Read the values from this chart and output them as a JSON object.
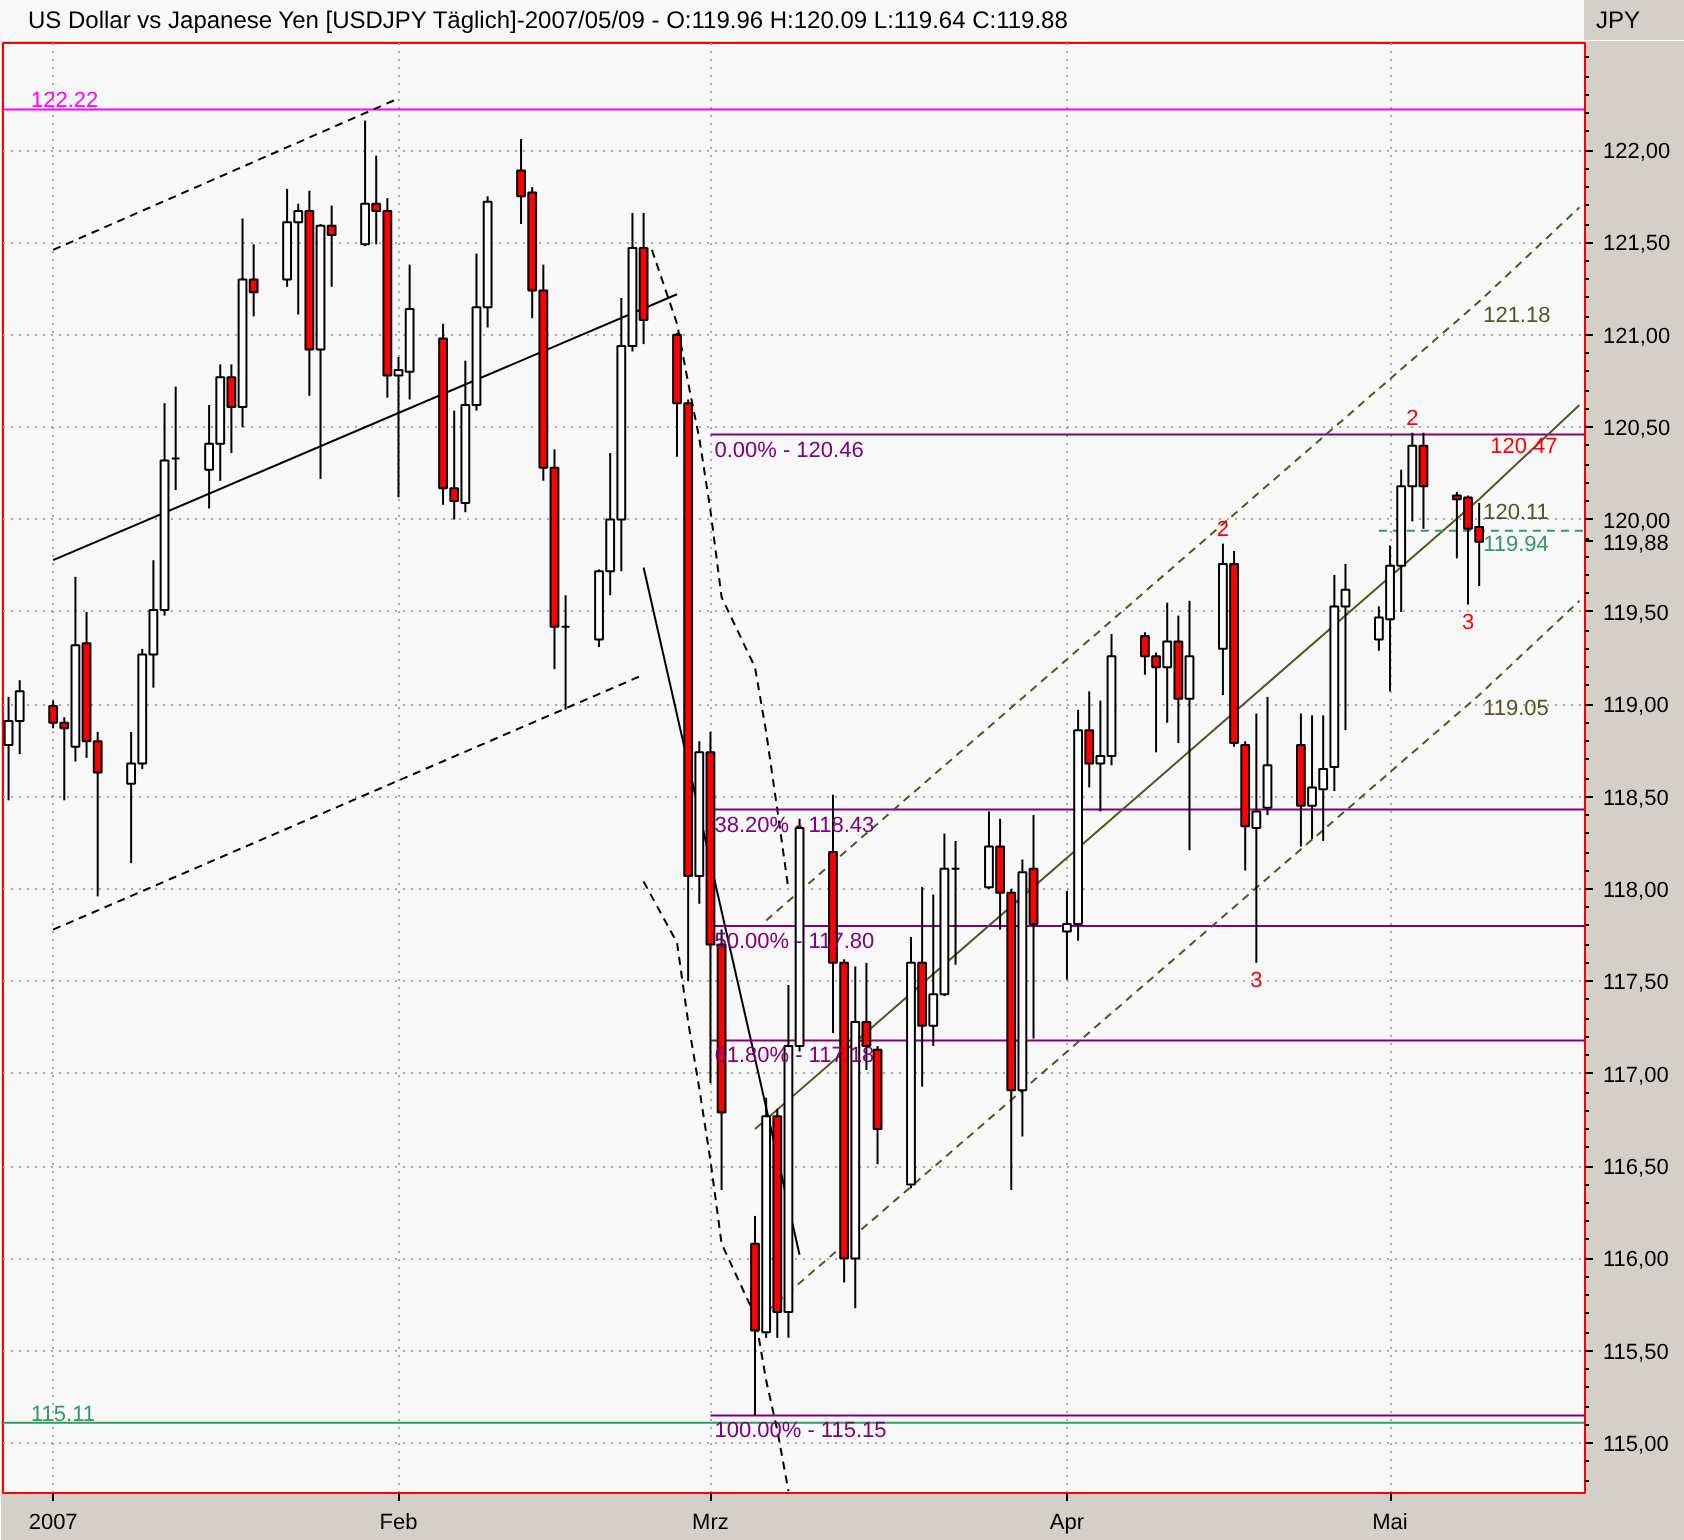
{
  "chart_data": {
    "type": "candlestick",
    "title": "US Dollar vs Japanese Yen [USDJPY Täglich]-2007/05/09 - O:119.96 H:120.09 L:119.64 C:119.88",
    "ylabel": "JPY",
    "x": [
      "2006-12-28",
      "2006-12-29",
      "2007-01-01",
      "2007-01-02",
      "2007-01-03",
      "2007-01-04",
      "2007-01-05",
      "2007-01-08",
      "2007-01-09",
      "2007-01-10",
      "2007-01-11",
      "2007-01-12",
      "2007-01-15",
      "2007-01-16",
      "2007-01-17",
      "2007-01-18",
      "2007-01-19",
      "2007-01-22",
      "2007-01-23",
      "2007-01-24",
      "2007-01-25",
      "2007-01-26",
      "2007-01-29",
      "2007-01-30",
      "2007-01-31",
      "2007-02-01",
      "2007-02-02",
      "2007-02-05",
      "2007-02-06",
      "2007-02-07",
      "2007-02-08",
      "2007-02-09",
      "2007-02-12",
      "2007-02-13",
      "2007-02-14",
      "2007-02-15",
      "2007-02-16",
      "2007-02-19",
      "2007-02-20",
      "2007-02-21",
      "2007-02-22",
      "2007-02-23",
      "2007-02-26",
      "2007-02-27",
      "2007-02-28",
      "2007-03-01",
      "2007-03-02",
      "2007-03-05",
      "2007-03-06",
      "2007-03-07",
      "2007-03-08",
      "2007-03-09",
      "2007-03-12",
      "2007-03-13",
      "2007-03-14",
      "2007-03-15",
      "2007-03-16",
      "2007-03-19",
      "2007-03-20",
      "2007-03-21",
      "2007-03-22",
      "2007-03-23",
      "2007-03-26",
      "2007-03-27",
      "2007-03-28",
      "2007-03-29",
      "2007-03-30",
      "2007-04-02",
      "2007-04-03",
      "2007-04-04",
      "2007-04-05",
      "2007-04-06",
      "2007-04-09",
      "2007-04-10",
      "2007-04-11",
      "2007-04-12",
      "2007-04-13",
      "2007-04-16",
      "2007-04-17",
      "2007-04-18",
      "2007-04-19",
      "2007-04-20",
      "2007-04-23",
      "2007-04-24",
      "2007-04-25",
      "2007-04-26",
      "2007-04-27",
      "2007-04-30",
      "2007-05-01",
      "2007-05-02",
      "2007-05-03",
      "2007-05-04",
      "2007-05-07",
      "2007-05-08",
      "2007-05-09"
    ],
    "ohlc": [
      [
        118.78,
        119.04,
        118.48,
        118.91
      ],
      [
        118.91,
        119.13,
        118.73,
        119.07
      ],
      [
        118.99,
        119.02,
        118.87,
        118.9
      ],
      [
        118.9,
        118.93,
        118.48,
        118.87
      ],
      [
        118.77,
        119.69,
        118.69,
        119.32
      ],
      [
        119.33,
        119.5,
        118.71,
        118.8
      ],
      [
        118.8,
        118.85,
        117.96,
        118.63
      ],
      [
        118.57,
        118.85,
        118.14,
        118.68
      ],
      [
        118.68,
        119.3,
        118.65,
        119.27
      ],
      [
        119.27,
        119.78,
        119.09,
        119.51
      ],
      [
        119.51,
        120.63,
        119.48,
        120.32
      ],
      [
        120.33,
        120.72,
        120.16,
        120.33
      ],
      [
        120.27,
        120.62,
        120.06,
        120.41
      ],
      [
        120.41,
        120.84,
        120.21,
        120.77
      ],
      [
        120.77,
        120.84,
        120.36,
        120.61
      ],
      [
        120.61,
        121.63,
        120.5,
        121.3
      ],
      [
        121.3,
        121.49,
        121.1,
        121.23
      ],
      [
        121.3,
        121.79,
        121.26,
        121.61
      ],
      [
        121.61,
        121.71,
        121.11,
        121.67
      ],
      [
        121.67,
        121.78,
        120.67,
        120.92
      ],
      [
        120.92,
        121.6,
        120.22,
        121.59
      ],
      [
        121.59,
        121.7,
        121.26,
        121.54
      ],
      [
        121.49,
        122.16,
        121.48,
        121.71
      ],
      [
        121.71,
        121.97,
        121.49,
        121.67
      ],
      [
        121.67,
        121.74,
        120.66,
        120.78
      ],
      [
        120.78,
        120.88,
        120.12,
        120.81
      ],
      [
        120.8,
        121.38,
        120.65,
        121.14
      ],
      [
        120.98,
        121.06,
        120.08,
        120.17
      ],
      [
        120.17,
        120.59,
        120.0,
        120.1
      ],
      [
        120.09,
        120.86,
        120.04,
        120.62
      ],
      [
        120.62,
        121.44,
        120.59,
        121.15
      ],
      [
        121.15,
        121.75,
        121.04,
        121.72
      ],
      [
        121.89,
        122.06,
        121.6,
        121.75
      ],
      [
        121.77,
        121.8,
        121.09,
        121.24
      ],
      [
        121.24,
        121.38,
        120.21,
        120.28
      ],
      [
        120.28,
        120.38,
        119.19,
        119.42
      ],
      [
        119.42,
        119.59,
        118.97,
        119.42
      ],
      [
        119.35,
        119.73,
        119.31,
        119.72
      ],
      [
        119.72,
        120.36,
        119.59,
        120.0
      ],
      [
        120.0,
        121.2,
        119.72,
        120.94
      ],
      [
        120.94,
        121.66,
        120.91,
        121.47
      ],
      [
        121.47,
        121.66,
        120.95,
        121.08
      ],
      [
        121.0,
        121.01,
        120.34,
        120.63
      ],
      [
        120.63,
        120.65,
        117.5,
        118.07
      ],
      [
        118.07,
        118.8,
        117.92,
        118.74
      ],
      [
        118.74,
        118.85,
        116.95,
        117.7
      ],
      [
        117.7,
        117.78,
        116.37,
        116.79
      ],
      [
        116.08,
        116.23,
        115.15,
        115.61
      ],
      [
        115.6,
        116.87,
        115.57,
        116.77
      ],
      [
        116.77,
        116.81,
        115.57,
        115.71
      ],
      [
        115.71,
        117.48,
        115.57,
        117.15
      ],
      [
        117.15,
        118.38,
        117.12,
        118.33
      ],
      [
        118.2,
        118.51,
        117.22,
        117.6
      ],
      [
        117.6,
        117.62,
        115.87,
        116.0
      ],
      [
        116.0,
        117.58,
        115.73,
        117.28
      ],
      [
        117.28,
        117.6,
        117.02,
        117.15
      ],
      [
        117.13,
        117.15,
        116.51,
        116.7
      ],
      [
        116.4,
        117.74,
        116.38,
        117.6
      ],
      [
        117.6,
        118.01,
        116.93,
        117.26
      ],
      [
        117.26,
        117.97,
        117.15,
        117.43
      ],
      [
        117.43,
        118.3,
        117.42,
        118.11
      ],
      [
        118.11,
        118.26,
        117.59,
        118.11
      ],
      [
        118.01,
        118.42,
        118.0,
        118.23
      ],
      [
        118.23,
        118.38,
        117.78,
        117.98
      ],
      [
        117.98,
        118.0,
        116.37,
        116.91
      ],
      [
        116.91,
        118.16,
        116.66,
        118.09
      ],
      [
        118.11,
        118.4,
        117.19,
        117.81
      ],
      [
        117.77,
        117.99,
        117.51,
        117.81
      ],
      [
        117.81,
        118.97,
        117.72,
        118.86
      ],
      [
        118.86,
        119.07,
        118.55,
        118.68
      ],
      [
        118.68,
        119.02,
        118.42,
        118.72
      ],
      [
        118.72,
        119.38,
        118.67,
        119.26
      ],
      [
        119.37,
        119.39,
        119.16,
        119.26
      ],
      [
        119.26,
        119.28,
        118.74,
        119.2
      ],
      [
        119.2,
        119.55,
        118.9,
        119.34
      ],
      [
        119.34,
        119.48,
        118.79,
        119.03
      ],
      [
        119.03,
        119.56,
        118.21,
        119.26
      ],
      [
        119.3,
        119.87,
        119.05,
        119.76
      ],
      [
        119.76,
        119.83,
        118.77,
        118.79
      ],
      [
        118.78,
        118.8,
        118.1,
        118.34
      ],
      [
        118.33,
        118.95,
        117.6,
        118.42
      ],
      [
        118.44,
        119.04,
        118.4,
        118.67
      ],
      [
        118.78,
        118.95,
        118.23,
        118.45
      ],
      [
        118.45,
        118.94,
        118.27,
        118.55
      ],
      [
        118.54,
        118.94,
        118.26,
        118.65
      ],
      [
        118.66,
        119.7,
        118.53,
        119.53
      ],
      [
        119.53,
        119.76,
        118.86,
        119.62
      ],
      [
        119.35,
        119.53,
        119.29,
        119.47
      ],
      [
        119.46,
        119.86,
        119.07,
        119.75
      ],
      [
        119.75,
        120.27,
        119.5,
        120.18
      ],
      [
        120.18,
        120.47,
        119.99,
        120.4
      ],
      [
        120.4,
        120.47,
        119.95,
        120.18
      ],
      [
        120.13,
        120.15,
        119.79,
        120.11
      ],
      [
        120.12,
        120.13,
        119.54,
        119.95
      ],
      [
        119.96,
        120.09,
        119.64,
        119.88
      ]
    ],
    "colors": [
      "#ffffff",
      "#ffffff",
      "#ff0000",
      "#ff0000",
      "#ffffff",
      "#ff0000",
      "#ff0000",
      "#ffffff",
      "#ffffff",
      "#ffffff",
      "#ffffff",
      "#000000",
      "#ffffff",
      "#ffffff",
      "#ff0000",
      "#ffffff",
      "#ff0000",
      "#ffffff",
      "#ffffff",
      "#ff0000",
      "#ffffff",
      "#ff0000",
      "#ffffff",
      "#ff0000",
      "#ff0000",
      "#ffffff",
      "#ffffff",
      "#ff0000",
      "#ff0000",
      "#ffffff",
      "#ffffff",
      "#ffffff",
      "#ff0000",
      "#ff0000",
      "#ff0000",
      "#ff0000",
      "#000000",
      "#ffffff",
      "#ffffff",
      "#ffffff",
      "#ffffff",
      "#ff0000",
      "#ff0000",
      "#ff0000",
      "#ffffff",
      "#ff0000",
      "#ff0000",
      "#ff0000",
      "#ffffff",
      "#ff0000",
      "#ffffff",
      "#ffffff",
      "#ff0000",
      "#ff0000",
      "#ffffff",
      "#ff0000",
      "#ff0000",
      "#ffffff",
      "#ff0000",
      "#ffffff",
      "#ffffff",
      "#000000",
      "#ffffff",
      "#ff0000",
      "#ff0000",
      "#ffffff",
      "#ff0000",
      "#ffffff",
      "#ffffff",
      "#ff0000",
      "#ffffff",
      "#ffffff",
      "#ff0000",
      "#ff0000",
      "#ffffff",
      "#ff0000",
      "#ffffff",
      "#ffffff",
      "#ff0000",
      "#ff0000",
      "#ffffff",
      "#ffffff",
      "#ff0000",
      "#ffffff",
      "#ffffff",
      "#ffffff",
      "#ffffff",
      "#ffffff",
      "#ffffff",
      "#ffffff",
      "#ffffff",
      "#ff0000",
      "#ff0000",
      "#ff0000",
      "#ff0000"
    ],
    "xlim": [
      "2006-12-27T12:00",
      "2007-05-18T12:00"
    ],
    "xticks": [
      {
        "value": "2007-01-01",
        "label": "2007"
      },
      {
        "value": "2007-02-01",
        "label": "Feb"
      },
      {
        "value": "2007-03-01",
        "label": "Mrz"
      },
      {
        "value": "2007-04-02",
        "label": "Apr"
      },
      {
        "value": "2007-05-01",
        "label": "Mai"
      }
    ],
    "ylim": [
      114.73,
      122.58
    ],
    "yticks": [
      {
        "value": 115,
        "label": "115,00"
      },
      {
        "value": 115.5,
        "label": "115,50"
      },
      {
        "value": 116,
        "label": "116,00"
      },
      {
        "value": 116.5,
        "label": "116,50"
      },
      {
        "value": 117,
        "label": "117,00"
      },
      {
        "value": 117.5,
        "label": "117,50"
      },
      {
        "value": 118,
        "label": "118,00"
      },
      {
        "value": 118.5,
        "label": "118,50"
      },
      {
        "value": 119,
        "label": "119,00"
      },
      {
        "value": 119.5,
        "label": "119,50"
      },
      {
        "value": 119.88,
        "label": "119,88"
      },
      {
        "value": 120,
        "label": "120,00"
      },
      {
        "value": 120.5,
        "label": "120,50"
      },
      {
        "value": 121,
        "label": "121,00"
      },
      {
        "value": 121.5,
        "label": "121,50"
      },
      {
        "value": 122,
        "label": "122,00"
      }
    ],
    "grid": true,
    "series": [
      {
        "type": "line",
        "x": [
          "2007-01-01",
          "2007-02-26"
        ],
        "values": [
          119.78,
          121.22
        ],
        "color": "#000000"
      },
      {
        "type": "line",
        "x": [
          "2007-01-01",
          "2007-02-01"
        ],
        "values": [
          121.46,
          122.28
        ],
        "color": "#000000",
        "line_style": "dashed"
      },
      {
        "type": "line",
        "x": [
          "2007-01-01",
          "2007-02-23"
        ],
        "values": [
          117.78,
          119.16
        ],
        "color": "#000000",
        "line_style": "dashed"
      },
      {
        "type": "line",
        "x": [
          "2007-02-23",
          "2007-03-09"
        ],
        "values": [
          119.74,
          116.02
        ],
        "color": "#000000"
      },
      {
        "type": "line",
        "x": [
          "2007-02-23T18:00",
          "2007-02-26",
          "2007-02-27",
          "2007-02-28",
          "2007-03-01",
          "2007-03-02",
          "2007-03-05",
          "2007-03-06",
          "2007-03-07",
          "2007-03-08"
        ],
        "values": [
          121.46,
          121.06,
          120.74,
          120.44,
          120.05,
          119.58,
          119.2,
          118.85,
          118.43,
          118.0
        ],
        "color": "#000000",
        "line_style": "dashed"
      },
      {
        "type": "line",
        "x": [
          "2007-02-23",
          "2007-02-26",
          "2007-02-27",
          "2007-02-28",
          "2007-03-01",
          "2007-03-02",
          "2007-03-05",
          "2007-03-06",
          "2007-03-07",
          "2007-03-08"
        ],
        "values": [
          118.04,
          117.71,
          117.28,
          116.92,
          116.53,
          116.08,
          115.69,
          115.34,
          115.07,
          114.74
        ],
        "color": "#000000",
        "line_style": "dashed"
      },
      {
        "type": "line",
        "name": "0.00% - 120.46",
        "x": [
          "2007-03-01",
          "2007-05-18T12:00"
        ],
        "values": [
          120.46,
          120.46
        ],
        "color": "#800080"
      },
      {
        "type": "line",
        "name": "38.20% - 118.43",
        "x": [
          "2007-03-01",
          "2007-05-18T12:00"
        ],
        "values": [
          118.43,
          118.43
        ],
        "color": "#800080"
      },
      {
        "type": "line",
        "name": "50.00% - 117.80",
        "x": [
          "2007-03-01",
          "2007-05-18T12:00"
        ],
        "values": [
          117.8,
          117.8
        ],
        "color": "#800080"
      },
      {
        "type": "line",
        "name": "61.80% - 117.18",
        "x": [
          "2007-03-01",
          "2007-05-18T12:00"
        ],
        "values": [
          117.18,
          117.18
        ],
        "color": "#800080"
      },
      {
        "type": "line",
        "name": "100.00% - 115.15",
        "x": [
          "2007-03-01",
          "2007-05-18T12:00"
        ],
        "values": [
          115.15,
          115.15
        ],
        "color": "#800080"
      },
      {
        "type": "line",
        "name": "121.18",
        "x": [
          "2007-03-06",
          "2007-05-09",
          "2007-05-18"
        ],
        "values": [
          117.83,
          121.18,
          121.69
        ],
        "color": "#555522",
        "line_style": "dashed"
      },
      {
        "type": "line",
        "name": "120.11",
        "x": [
          "2007-03-05",
          "2007-05-09",
          "2007-05-18"
        ],
        "values": [
          116.7,
          120.11,
          120.62
        ],
        "color": "#555522"
      },
      {
        "type": "line",
        "name": "119.05",
        "x": [
          "2007-03-06",
          "2007-05-09",
          "2007-05-18"
        ],
        "values": [
          115.71,
          119.05,
          119.56
        ],
        "color": "#555522",
        "line_style": "dashed"
      },
      {
        "type": "line",
        "name": "119.94",
        "x": [
          "2007-04-30",
          "2007-05-09",
          "2007-05-18T12:00"
        ],
        "values": [
          119.94,
          119.94,
          119.94
        ],
        "color": "#339966",
        "line_style": "dashed"
      }
    ],
    "ref_lines": [
      {
        "axis": "y",
        "value": 122.22,
        "label": "122.22",
        "color": "#ff00ff"
      },
      {
        "axis": "y",
        "value": 115.11,
        "label": "115.11",
        "color": "#339966"
      }
    ],
    "annotations": [
      {
        "text": "2",
        "x": "2007-04-16",
        "y": 119.87
      },
      {
        "text": "3",
        "x": "2007-04-19",
        "y": 117.6
      },
      {
        "text": "2",
        "x": "2007-05-03",
        "y": 120.47
      },
      {
        "text": "3",
        "x": "2007-05-08",
        "y": 119.54
      },
      {
        "text": "120.47",
        "x": "2007-05-10",
        "y": 120.47
      }
    ]
  }
}
